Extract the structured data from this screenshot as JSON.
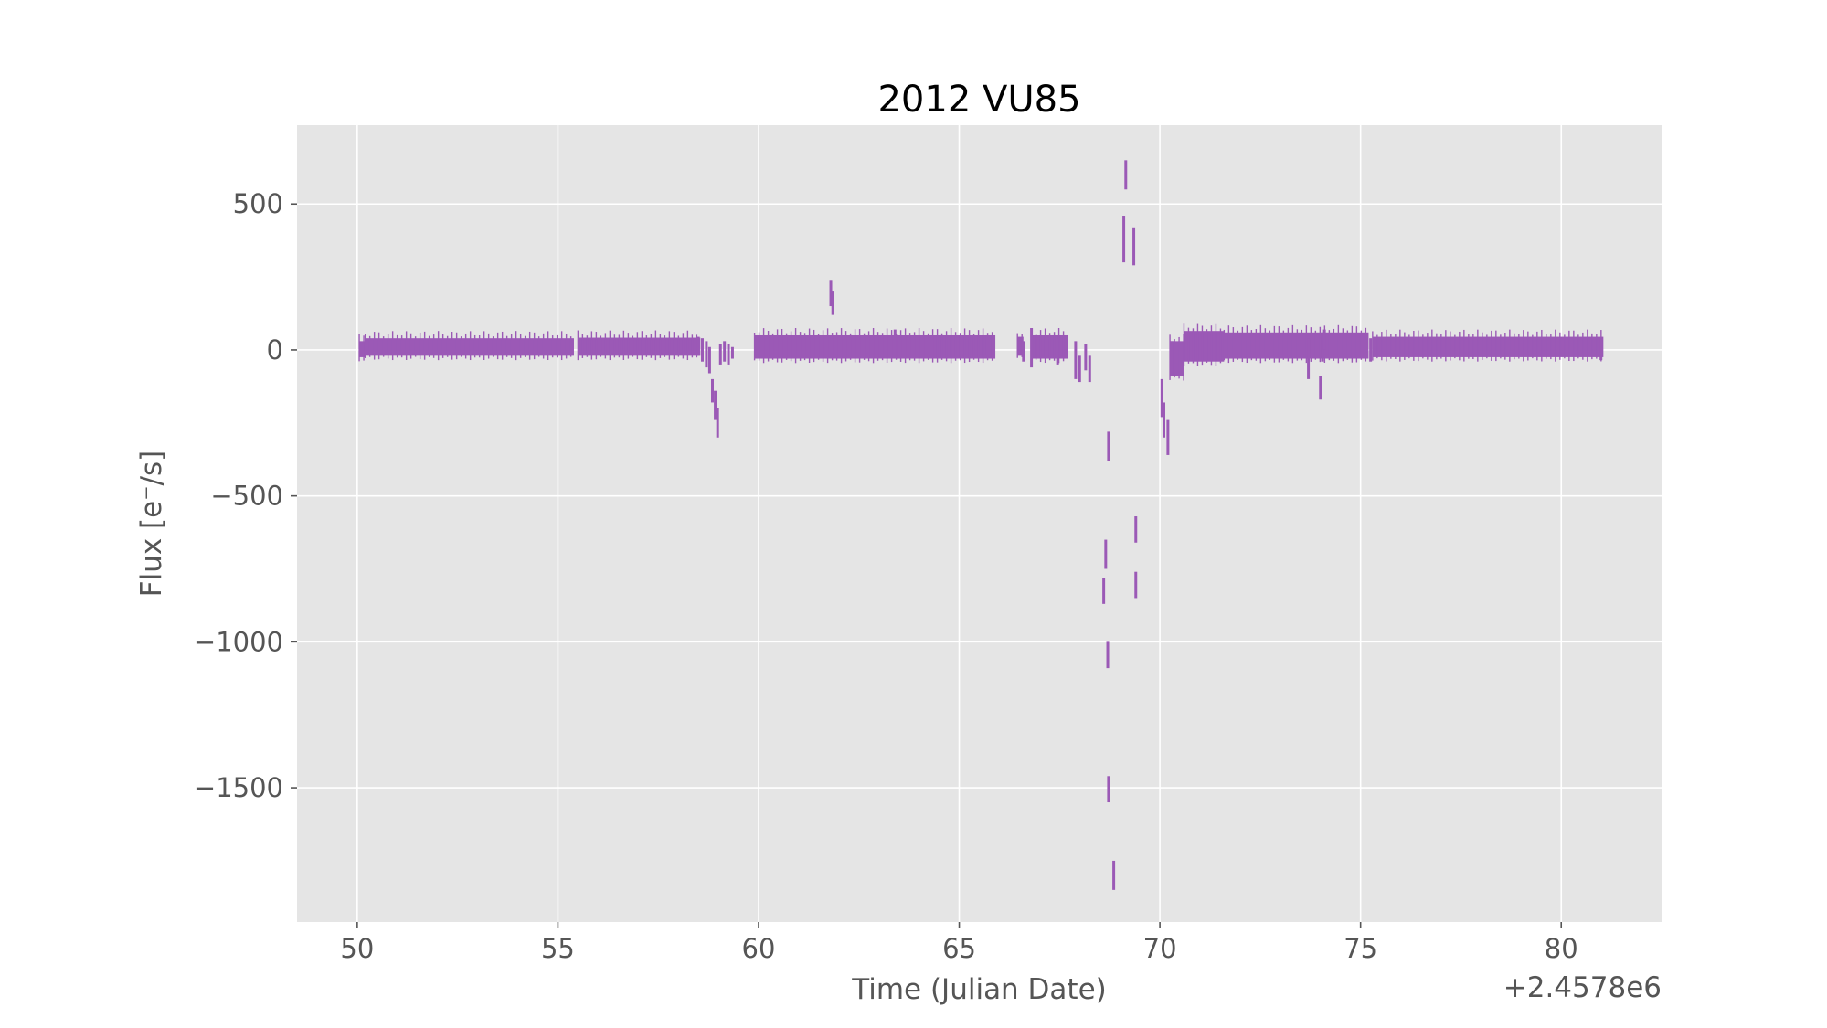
{
  "chart_data": {
    "type": "line",
    "title": "2012 VU85",
    "xlabel": "Time (Julian Date)",
    "ylabel": "Flux [e⁻/s]",
    "x_offset_text": "+2.4578e6",
    "xlim": [
      48.5,
      82.5
    ],
    "ylim": [
      -1960,
      770
    ],
    "xticks": [
      50,
      55,
      60,
      65,
      70,
      75,
      80
    ],
    "xtick_labels": [
      "50",
      "55",
      "60",
      "65",
      "70",
      "75",
      "80"
    ],
    "yticks": [
      500,
      0,
      -500,
      -1000,
      -1500
    ],
    "ytick_labels": [
      "500",
      "0",
      "−500",
      "−1000",
      "−1500"
    ],
    "grid": true,
    "background_color": "#e5e5e5",
    "grid_color": "#ffffff",
    "series": [
      {
        "color": "#9b59b6",
        "bands": [
          {
            "x_start": 50.05,
            "x_end": 50.2,
            "y_low": -25,
            "y_high": 30
          },
          {
            "x_start": 50.2,
            "x_end": 55.4,
            "y_low": -20,
            "y_high": 40
          },
          {
            "x_start": 55.5,
            "x_end": 58.55,
            "y_low": -20,
            "y_high": 42
          },
          {
            "x_start": 59.9,
            "x_end": 65.9,
            "y_low": -30,
            "y_high": 50
          },
          {
            "x_start": 66.45,
            "x_end": 66.6,
            "y_low": -20,
            "y_high": 45
          },
          {
            "x_start": 66.8,
            "x_end": 67.7,
            "y_low": -30,
            "y_high": 50
          },
          {
            "x_start": 70.25,
            "x_end": 70.6,
            "y_low": -90,
            "y_high": 30
          },
          {
            "x_start": 70.6,
            "x_end": 71.6,
            "y_low": -40,
            "y_high": 65
          },
          {
            "x_start": 71.6,
            "x_end": 75.2,
            "y_low": -30,
            "y_high": 60
          },
          {
            "x_start": 75.3,
            "x_end": 81.05,
            "y_low": -25,
            "y_high": 45
          }
        ],
        "segments": [
          {
            "x": 58.6,
            "y_low": -40,
            "y_high": 40
          },
          {
            "x": 58.7,
            "y_low": -60,
            "y_high": 30
          },
          {
            "x": 58.78,
            "y_low": -80,
            "y_high": 10
          },
          {
            "x": 58.85,
            "y_low": -180,
            "y_high": -100
          },
          {
            "x": 58.92,
            "y_low": -240,
            "y_high": -140
          },
          {
            "x": 58.98,
            "y_low": -300,
            "y_high": -200
          },
          {
            "x": 59.05,
            "y_low": -50,
            "y_high": 20
          },
          {
            "x": 59.15,
            "y_low": -40,
            "y_high": 30
          },
          {
            "x": 59.25,
            "y_low": -50,
            "y_high": 20
          },
          {
            "x": 59.35,
            "y_low": -30,
            "y_high": 10
          },
          {
            "x": 61.8,
            "y_low": 150,
            "y_high": 240
          },
          {
            "x": 61.85,
            "y_low": 120,
            "y_high": 200
          },
          {
            "x": 65.7,
            "y_low": -20,
            "y_high": 50
          },
          {
            "x": 66.6,
            "y_low": -40,
            "y_high": 30
          },
          {
            "x": 66.8,
            "y_low": -60,
            "y_high": 75
          },
          {
            "x": 67.45,
            "y_low": -50,
            "y_high": 40
          },
          {
            "x": 67.9,
            "y_low": -100,
            "y_high": 30
          },
          {
            "x": 68.0,
            "y_low": -110,
            "y_high": -20
          },
          {
            "x": 68.15,
            "y_low": -70,
            "y_high": 20
          },
          {
            "x": 68.25,
            "y_low": -110,
            "y_high": -20
          },
          {
            "x": 68.6,
            "y_low": -870,
            "y_high": -780
          },
          {
            "x": 68.65,
            "y_low": -750,
            "y_high": -650
          },
          {
            "x": 68.7,
            "y_low": -1090,
            "y_high": -1000
          },
          {
            "x": 68.72,
            "y_low": -380,
            "y_high": -280
          },
          {
            "x": 68.72,
            "y_low": -1550,
            "y_high": -1460
          },
          {
            "x": 68.85,
            "y_low": -1850,
            "y_high": -1750
          },
          {
            "x": 69.1,
            "y_low": 300,
            "y_high": 460
          },
          {
            "x": 69.15,
            "y_low": 550,
            "y_high": 650
          },
          {
            "x": 69.35,
            "y_low": 290,
            "y_high": 420
          },
          {
            "x": 69.4,
            "y_low": -660,
            "y_high": -570
          },
          {
            "x": 69.4,
            "y_low": -850,
            "y_high": -760
          },
          {
            "x": 70.05,
            "y_low": -230,
            "y_high": -100
          },
          {
            "x": 70.1,
            "y_low": -300,
            "y_high": -180
          },
          {
            "x": 70.2,
            "y_low": -360,
            "y_high": -240
          },
          {
            "x": 70.3,
            "y_low": -90,
            "y_high": 30
          },
          {
            "x": 73.7,
            "y_low": -100,
            "y_high": 40
          },
          {
            "x": 74.0,
            "y_low": -170,
            "y_high": -90
          },
          {
            "x": 74.05,
            "y_low": -40,
            "y_high": 60
          },
          {
            "x": 74.1,
            "y_low": 0,
            "y_high": 70
          },
          {
            "x": 62.7,
            "y_low": -10,
            "y_high": 50
          },
          {
            "x": 63.4,
            "y_low": -20,
            "y_high": 70
          },
          {
            "x": 58.5,
            "y_low": -20,
            "y_high": 45
          },
          {
            "x": 75.25,
            "y_low": -40,
            "y_high": 40
          },
          {
            "x": 80.99,
            "y_low": -35,
            "y_high": 40
          }
        ]
      }
    ]
  }
}
